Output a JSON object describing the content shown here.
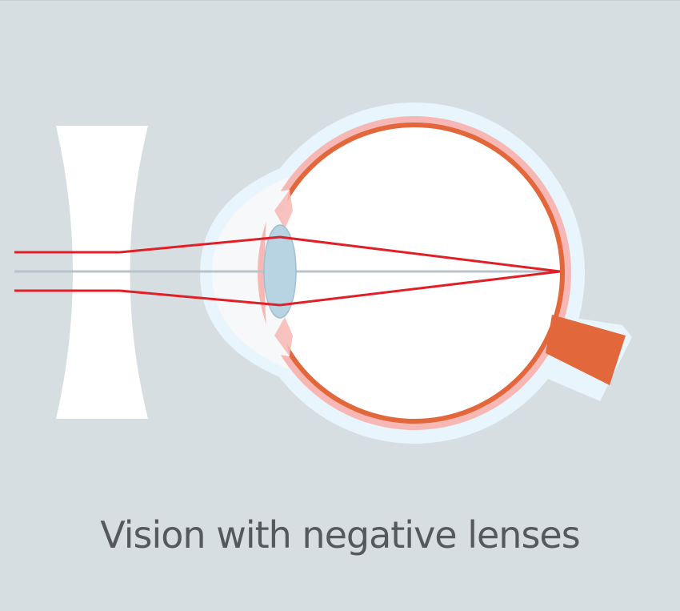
{
  "caption": "Vision with negative lenses",
  "colors": {
    "background": "#d7dee2",
    "light_ray": "#e01f26",
    "optical_axis": "#b9c3cc",
    "sclera_outline": "#e8f5fc",
    "choroid": "#f7b7b4",
    "retina": "#e2673a",
    "optic_nerve": "#e2673a",
    "crystalline_lens": "#b8d4e2",
    "corrective_lens": "#ffffff",
    "caption_text": "#55595c"
  },
  "icons": {
    "corrective_lens": "concave-lens-icon",
    "eye": "eyeball-cross-section-icon"
  }
}
